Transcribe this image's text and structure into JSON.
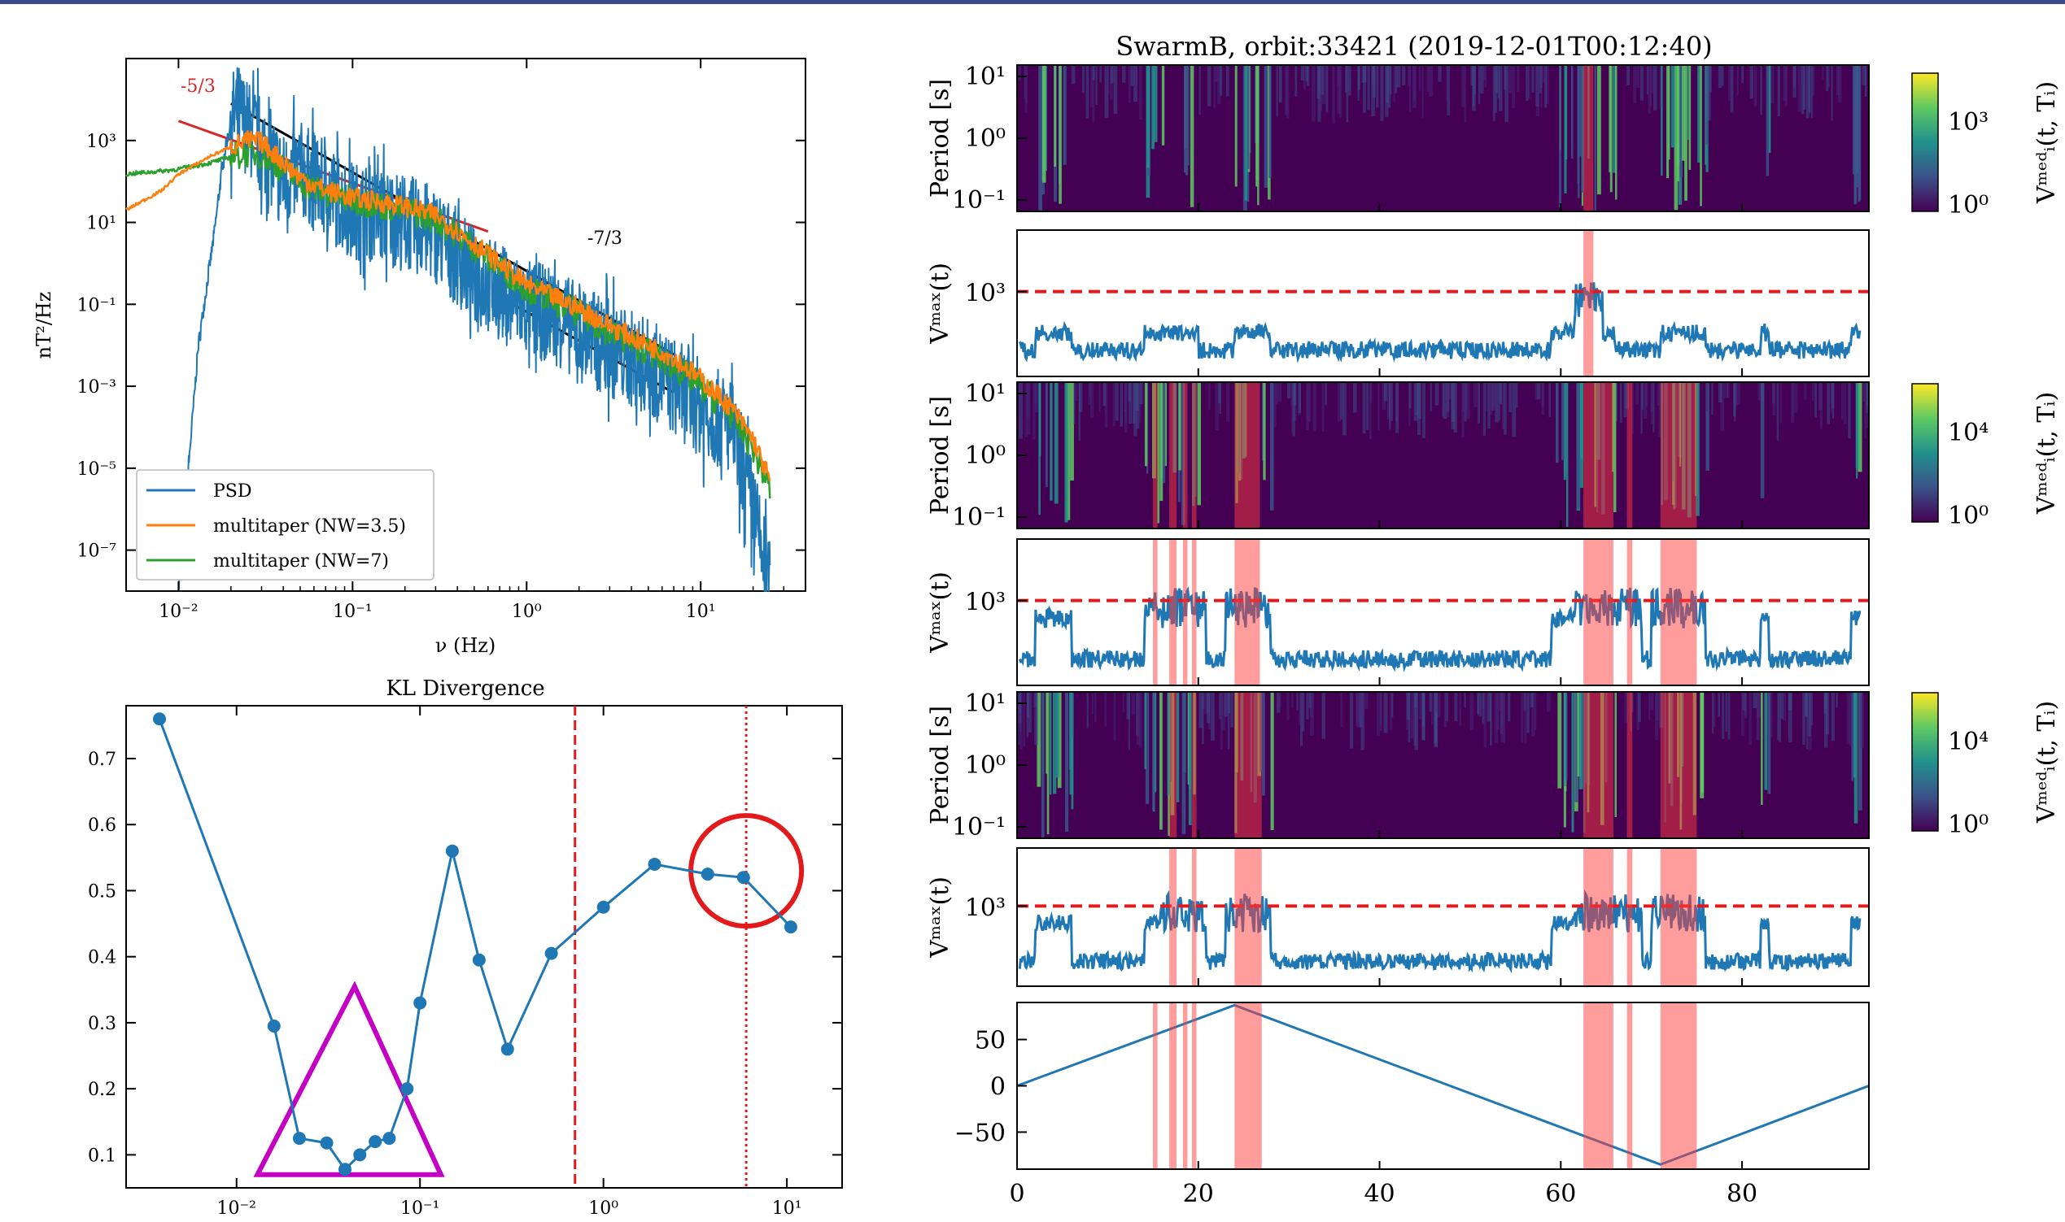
{
  "chart_data": [
    {
      "id": "psd",
      "type": "line",
      "xscale": "log",
      "yscale": "log",
      "xlim": [
        0.005,
        40
      ],
      "ylim": [
        1e-08,
        100000.0
      ],
      "xlabel": "ν (Hz)",
      "ylabel": "nT²/Hz",
      "xticks": [
        {
          "v": 0.01,
          "label": "10⁻²"
        },
        {
          "v": 0.1,
          "label": "10⁻¹"
        },
        {
          "v": 1,
          "label": "10⁰"
        },
        {
          "v": 10,
          "label": "10¹"
        }
      ],
      "yticks": [
        {
          "v": 1000.0,
          "label": "10³"
        },
        {
          "v": 10,
          "label": "10¹"
        },
        {
          "v": 0.1,
          "label": "10⁻¹"
        },
        {
          "v": 0.001,
          "label": "10⁻³"
        },
        {
          "v": 1e-05,
          "label": "10⁻⁵"
        },
        {
          "v": 1e-07,
          "label": "10⁻⁷"
        }
      ],
      "series": [
        {
          "name": "PSD",
          "color": "#1f77b4",
          "x": [
            0.01,
            0.013,
            0.016,
            0.018,
            0.02,
            0.022,
            0.025,
            0.03,
            0.035,
            0.04,
            0.05,
            0.07,
            0.1,
            0.15,
            0.2,
            0.3,
            0.5,
            0.7,
            1,
            1.5,
            2,
            3,
            5,
            7,
            10,
            15,
            20,
            25
          ],
          "y": [
            1e-08,
            0.01,
            5,
            300,
            3000,
            5000,
            2000,
            800,
            300,
            100,
            200,
            60,
            20,
            15,
            10,
            5,
            0.5,
            0.2,
            0.08,
            0.05,
            0.02,
            0.008,
            0.003,
            0.001,
            0.0003,
            0.0001,
            1e-06,
            1e-08
          ]
        },
        {
          "name": "multitaper (NW=3.5)",
          "color": "#ff7f0e",
          "x": [
            0.005,
            0.008,
            0.01,
            0.015,
            0.02,
            0.025,
            0.03,
            0.04,
            0.05,
            0.07,
            0.1,
            0.2,
            0.3,
            0.5,
            1,
            2,
            3,
            5,
            7,
            10,
            15,
            20,
            25
          ],
          "y": [
            20,
            60,
            150,
            400,
            700,
            1000,
            900,
            300,
            120,
            60,
            40,
            25,
            15,
            3,
            0.3,
            0.08,
            0.03,
            0.01,
            0.005,
            0.0015,
            0.0003,
            5e-05,
            5e-06
          ]
        },
        {
          "name": "multitaper (NW=7)",
          "color": "#2ca02c",
          "x": [
            0.005,
            0.008,
            0.01,
            0.015,
            0.02,
            0.025,
            0.03,
            0.04,
            0.05,
            0.07,
            0.1,
            0.2,
            0.3,
            0.5,
            1,
            2,
            3,
            5,
            7,
            10,
            15,
            20,
            25
          ],
          "y": [
            150,
            180,
            200,
            280,
            400,
            500,
            450,
            200,
            100,
            50,
            35,
            20,
            12,
            2.5,
            0.25,
            0.06,
            0.02,
            0.007,
            0.003,
            0.001,
            0.0002,
            3e-05,
            3e-06
          ]
        }
      ],
      "annotations": [
        {
          "text": "-5/3",
          "color": "#d62728"
        },
        {
          "text": "-7/3",
          "color": "#000000"
        }
      ],
      "fit_lines": [
        {
          "color": "#d62728",
          "x": [
            0.01,
            0.6
          ],
          "y": [
            3000,
            6
          ]
        },
        {
          "color": "#000000",
          "x": [
            0.02,
            7
          ],
          "y": [
            8000,
            0.006
          ]
        },
        {
          "color": "#000000",
          "x": [
            0.7,
            7
          ],
          "y": [
            0.15,
            0.0007
          ]
        }
      ],
      "legend": "lower-left"
    },
    {
      "id": "kl",
      "type": "line",
      "title": "KL Divergence",
      "xscale": "log",
      "xlim": [
        0.0025,
        20
      ],
      "ylim": [
        0.05,
        0.78
      ],
      "xticks": [
        {
          "v": 0.01,
          "label": "10⁻²"
        },
        {
          "v": 0.1,
          "label": "10⁻¹"
        },
        {
          "v": 1,
          "label": "10⁰"
        },
        {
          "v": 10,
          "label": "10¹"
        }
      ],
      "yticks": [
        {
          "v": 0.1,
          "label": "0.1"
        },
        {
          "v": 0.2,
          "label": "0.2"
        },
        {
          "v": 0.3,
          "label": "0.3"
        },
        {
          "v": 0.4,
          "label": "0.4"
        },
        {
          "v": 0.5,
          "label": "0.5"
        },
        {
          "v": 0.6,
          "label": "0.6"
        },
        {
          "v": 0.7,
          "label": "0.7"
        }
      ],
      "x": [
        0.0038,
        0.016,
        0.022,
        0.031,
        0.039,
        0.047,
        0.057,
        0.068,
        0.085,
        0.1,
        0.15,
        0.21,
        0.3,
        0.52,
        1,
        1.9,
        3.7,
        5.8,
        10.5
      ],
      "y": [
        0.76,
        0.295,
        0.125,
        0.118,
        0.078,
        0.1,
        0.12,
        0.125,
        0.2,
        0.33,
        0.56,
        0.395,
        0.26,
        0.405,
        0.475,
        0.54,
        0.525,
        0.52,
        0.445
      ],
      "color": "#1f77b4",
      "vlines": [
        {
          "x": 0.7,
          "style": "dashed",
          "color": "#e31a1c"
        },
        {
          "x": 6,
          "style": "dotted",
          "color": "#e31a1c"
        }
      ],
      "markers": [
        {
          "shape": "triangle",
          "color": "#c300c3",
          "x": [
            0.013,
            0.044,
            0.13
          ],
          "y": [
            0.07,
            0.355,
            0.07
          ]
        },
        {
          "shape": "circle",
          "color": "#e31a1c",
          "cx": 6,
          "cy": 0.53
        }
      ]
    },
    {
      "id": "swarm",
      "type": "heatmap",
      "title": "SwarmB, orbit:33421 (2019-12-01T00:12:40)",
      "xlim": [
        0,
        94
      ],
      "xticks": [
        0,
        20,
        40,
        60,
        80
      ],
      "spectrogram_ylabel": "Period [s]",
      "spectrogram_yticks": [
        "10¹",
        "10⁰",
        "10⁻¹"
      ],
      "vmax_ylabel": "Vᵐᵃˣ(t)",
      "vmax_ytick": "10³",
      "lat_yticks": [
        "50",
        "0",
        "−50"
      ],
      "lat_ylim": [
        -90,
        90
      ],
      "colorbar_label": "Vᵐᵉᵈᵢ(t, Tᵢ)",
      "colorbars": [
        {
          "top": "10³",
          "bottom": "10⁰"
        },
        {
          "top": "10⁴",
          "bottom": "10⁰"
        },
        {
          "top": "10⁴",
          "bottom": "10⁰"
        }
      ],
      "bright_bands": [
        [
          2,
          6
        ],
        [
          14,
          20
        ],
        [
          24,
          28
        ],
        [
          59,
          66
        ],
        [
          71,
          76
        ],
        [
          82,
          83
        ],
        [
          92,
          93
        ]
      ],
      "red_intervals": [
        [
          [
            62.5,
            63.6
          ]
        ],
        [
          [
            15,
            15.5
          ],
          [
            16.8,
            17.6
          ],
          [
            18.3,
            18.8
          ],
          [
            19.3,
            19.8
          ],
          [
            24,
            26.8
          ],
          [
            62.5,
            65.8
          ],
          [
            67.3,
            67.9
          ],
          [
            71,
            75
          ]
        ],
        [
          [
            16.8,
            17.6
          ],
          [
            19.3,
            19.8
          ],
          [
            24,
            27
          ],
          [
            62.5,
            65.8
          ],
          [
            67.3,
            67.9
          ],
          [
            71,
            75
          ]
        ],
        [
          [
            15,
            15.5
          ],
          [
            16.8,
            17.6
          ],
          [
            18.3,
            18.8
          ],
          [
            19.3,
            19.8
          ],
          [
            24,
            27
          ],
          [
            62.5,
            65.8
          ],
          [
            67.3,
            67.9
          ],
          [
            71,
            75
          ]
        ]
      ],
      "threshold": "red dashed",
      "latitude": {
        "x": [
          0,
          24,
          71,
          94
        ],
        "y": [
          0,
          87,
          -85,
          0
        ]
      }
    }
  ],
  "colors": {
    "blue": "#1f77b4",
    "orange": "#ff7f0e",
    "green": "#2ca02c",
    "red": "#d62728",
    "magenta": "#c300c3",
    "topbar": "#3a4a8c"
  }
}
